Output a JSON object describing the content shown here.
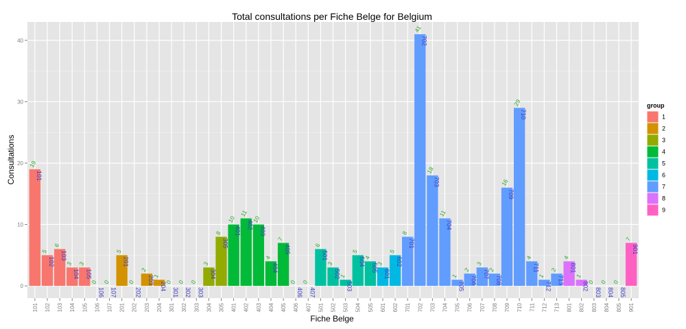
{
  "chart_data": {
    "type": "bar",
    "title": "Total consultations per Fiche Belge for Belgium",
    "xlabel": "Fiche Belge",
    "ylabel": "Consultations",
    "ylim": [
      -2,
      43
    ],
    "yticks": [
      0,
      10,
      20,
      30,
      40
    ],
    "grid": true,
    "legend_title": "group",
    "legend_position": "right",
    "groups": [
      "1",
      "2",
      "3",
      "4",
      "5",
      "6",
      "7",
      "8",
      "9"
    ],
    "group_colors": {
      "1": "#F8766D",
      "2": "#D39200",
      "3": "#93AA00",
      "4": "#00BA38",
      "5": "#00C19F",
      "6": "#00B9E3",
      "7": "#619CFF",
      "8": "#DB72FB",
      "9": "#FF61C3"
    },
    "categories": [
      "101",
      "102",
      "103",
      "104",
      "105",
      "106",
      "107",
      "201",
      "202",
      "203",
      "204",
      "301",
      "302",
      "303",
      "304",
      "305",
      "401",
      "402",
      "403",
      "404",
      "405",
      "406",
      "407",
      "501",
      "502",
      "503",
      "504",
      "505",
      "601",
      "602",
      "701",
      "702",
      "703",
      "704",
      "705",
      "706",
      "707",
      "708",
      "709",
      "710",
      "711",
      "712",
      "713",
      "801",
      "802",
      "803",
      "804",
      "805",
      "901"
    ],
    "values": [
      19,
      5,
      6,
      3,
      3,
      0,
      0,
      5,
      0,
      2,
      1,
      0,
      0,
      0,
      3,
      8,
      10,
      11,
      10,
      4,
      7,
      0,
      0,
      6,
      3,
      1,
      5,
      4,
      3,
      5,
      8,
      41,
      18,
      11,
      1,
      2,
      3,
      2,
      16,
      29,
      4,
      1,
      2,
      4,
      1,
      0,
      0,
      0,
      7
    ],
    "group_of": [
      "1",
      "1",
      "1",
      "1",
      "1",
      "1",
      "1",
      "2",
      "2",
      "2",
      "2",
      "3",
      "3",
      "3",
      "3",
      "3",
      "4",
      "4",
      "4",
      "4",
      "4",
      "4",
      "4",
      "5",
      "5",
      "5",
      "5",
      "5",
      "6",
      "6",
      "7",
      "7",
      "7",
      "7",
      "7",
      "7",
      "7",
      "7",
      "7",
      "7",
      "7",
      "7",
      "7",
      "8",
      "8",
      "8",
      "8",
      "8",
      "9"
    ]
  }
}
